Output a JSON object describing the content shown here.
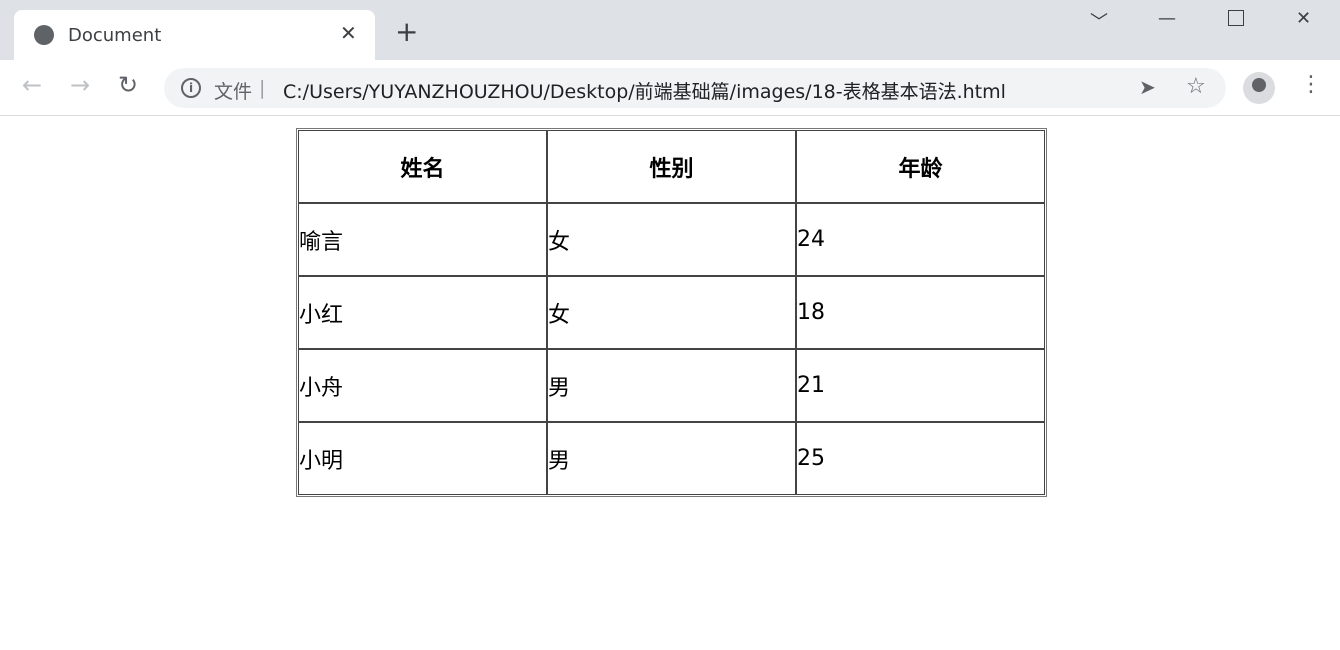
{
  "browser": {
    "tab_title": "Document",
    "address_scheme": "文件",
    "url": "C:/Users/YUYANZHOUZHOU/Desktop/前端基础篇/images/18-表格基本语法.html"
  },
  "table": {
    "headers": [
      "姓名",
      "性别",
      "年龄"
    ],
    "rows": [
      [
        "喻言",
        "女",
        "24"
      ],
      [
        "小红",
        "女",
        "18"
      ],
      [
        "小舟",
        "男",
        "21"
      ],
      [
        "小明",
        "男",
        "25"
      ]
    ]
  }
}
